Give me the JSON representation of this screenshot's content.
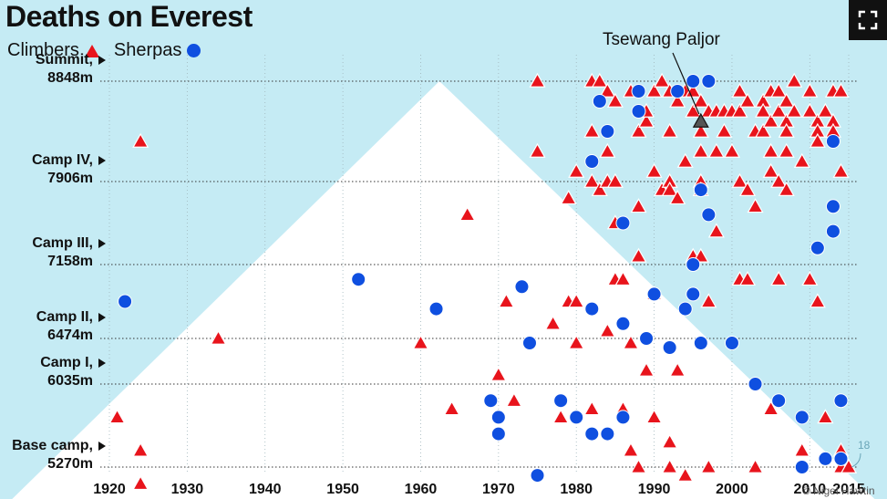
{
  "title": "Deaths on Everest",
  "legend": {
    "climbers": "Climbers",
    "sherpas": "Sherpas"
  },
  "annotation": "Tsewang Paljor",
  "corner_number": "18",
  "credit": "© Nigel Hawtin",
  "colors": {
    "sky": "#c5ebf4",
    "mountain": "#ffffff",
    "climber": "#e8141c",
    "sherpa": "#0f4fe0",
    "text": "#111111"
  },
  "icons": {
    "expand": "expand-icon"
  },
  "chart_data": {
    "type": "scatter",
    "title": "Deaths on Everest",
    "xlim": [
      1918,
      2017
    ],
    "xticks": [
      1920,
      1930,
      1940,
      1950,
      1960,
      1970,
      1980,
      1990,
      2000,
      2010,
      2015
    ],
    "y_scale": "camp-based",
    "ylevels": [
      {
        "name": "Base camp",
        "altitude": "5270m",
        "level": 0
      },
      {
        "name": "Camp I",
        "altitude": "6035m",
        "level": 1
      },
      {
        "name": "Camp II",
        "altitude": "6474m",
        "level": 2
      },
      {
        "name": "Camp III",
        "altitude": "7158m",
        "level": 3
      },
      {
        "name": "Camp IV",
        "altitude": "7906m",
        "level": 4
      },
      {
        "name": "Summit",
        "altitude": "8848m",
        "level": 5
      }
    ],
    "grid": "dotted horizontal at camps",
    "legend_position": "top-left",
    "series": [
      {
        "name": "Climbers",
        "marker": "triangle",
        "points": [
          [
            1921,
            0.6
          ],
          [
            1924,
            -0.2
          ],
          [
            1924,
            0.2
          ],
          [
            1924,
            4.4
          ],
          [
            1934,
            2.0
          ],
          [
            1960,
            1.9
          ],
          [
            1964,
            0.7
          ],
          [
            1966,
            3.6
          ],
          [
            1970,
            1.2
          ],
          [
            1971,
            2.5
          ],
          [
            1972,
            0.8
          ],
          [
            1975,
            5.0
          ],
          [
            1975,
            4.3
          ],
          [
            1977,
            2.2
          ],
          [
            1978,
            0.6
          ],
          [
            1979,
            3.8
          ],
          [
            1979,
            2.5
          ],
          [
            1980,
            4.1
          ],
          [
            1980,
            2.5
          ],
          [
            1980,
            1.9
          ],
          [
            1982,
            5.0
          ],
          [
            1982,
            4.5
          ],
          [
            1982,
            4.0
          ],
          [
            1982,
            0.7
          ],
          [
            1983,
            5.0
          ],
          [
            1983,
            3.9
          ],
          [
            1984,
            4.9
          ],
          [
            1984,
            4.3
          ],
          [
            1984,
            4.0
          ],
          [
            1984,
            2.1
          ],
          [
            1985,
            4.8
          ],
          [
            1985,
            3.5
          ],
          [
            1985,
            2.8
          ],
          [
            1985,
            4.0
          ],
          [
            1986,
            2.8
          ],
          [
            1986,
            0.7
          ],
          [
            1987,
            4.9
          ],
          [
            1987,
            1.9
          ],
          [
            1987,
            0.2
          ],
          [
            1988,
            4.5
          ],
          [
            1988,
            3.1
          ],
          [
            1988,
            0.0
          ],
          [
            1988,
            3.7
          ],
          [
            1989,
            4.6
          ],
          [
            1989,
            4.7
          ],
          [
            1989,
            1.3
          ],
          [
            1990,
            4.9
          ],
          [
            1990,
            4.1
          ],
          [
            1990,
            2.6
          ],
          [
            1990,
            0.6
          ],
          [
            1991,
            5.0
          ],
          [
            1991,
            3.9
          ],
          [
            1992,
            4.9
          ],
          [
            1992,
            4.5
          ],
          [
            1992,
            4.0
          ],
          [
            1992,
            3.9
          ],
          [
            1992,
            0.3
          ],
          [
            1992,
            0.0
          ],
          [
            1993,
            4.8
          ],
          [
            1993,
            3.8
          ],
          [
            1993,
            1.3
          ],
          [
            1994,
            4.9
          ],
          [
            1994,
            4.2
          ],
          [
            1994,
            -0.1
          ],
          [
            1995,
            4.9
          ],
          [
            1995,
            4.7
          ],
          [
            1995,
            3.1
          ],
          [
            1996,
            4.8
          ],
          [
            1996,
            4.6
          ],
          [
            1996,
            4.5
          ],
          [
            1996,
            4.3
          ],
          [
            1996,
            4.0
          ],
          [
            1996,
            3.9
          ],
          [
            1996,
            3.1
          ],
          [
            1997,
            4.7
          ],
          [
            1997,
            2.5
          ],
          [
            1997,
            0.0
          ],
          [
            1998,
            4.7
          ],
          [
            1998,
            4.3
          ],
          [
            1998,
            3.4
          ],
          [
            1999,
            4.7
          ],
          [
            1999,
            4.5
          ],
          [
            2000,
            4.7
          ],
          [
            2000,
            4.3
          ],
          [
            2001,
            4.9
          ],
          [
            2001,
            4.7
          ],
          [
            2001,
            4.0
          ],
          [
            2001,
            2.8
          ],
          [
            2002,
            4.8
          ],
          [
            2002,
            3.9
          ],
          [
            2002,
            2.8
          ],
          [
            2003,
            4.5
          ],
          [
            2003,
            3.7
          ],
          [
            2003,
            0.0
          ],
          [
            2004,
            4.8
          ],
          [
            2004,
            4.7
          ],
          [
            2004,
            4.5
          ],
          [
            2005,
            4.9
          ],
          [
            2005,
            4.6
          ],
          [
            2005,
            4.3
          ],
          [
            2005,
            4.1
          ],
          [
            2005,
            0.7
          ],
          [
            2006,
            4.9
          ],
          [
            2006,
            4.7
          ],
          [
            2006,
            4.0
          ],
          [
            2006,
            2.8
          ],
          [
            2007,
            4.8
          ],
          [
            2007,
            4.6
          ],
          [
            2007,
            4.5
          ],
          [
            2007,
            4.3
          ],
          [
            2007,
            3.9
          ],
          [
            2008,
            5.0
          ],
          [
            2008,
            4.7
          ],
          [
            2009,
            4.2
          ],
          [
            2009,
            0.2
          ],
          [
            2010,
            4.9
          ],
          [
            2010,
            4.7
          ],
          [
            2010,
            2.8
          ],
          [
            2011,
            4.6
          ],
          [
            2011,
            4.5
          ],
          [
            2011,
            4.4
          ],
          [
            2011,
            2.5
          ],
          [
            2012,
            4.7
          ],
          [
            2012,
            0.6
          ],
          [
            2013,
            4.9
          ],
          [
            2013,
            4.6
          ],
          [
            2013,
            4.5
          ],
          [
            2014,
            4.9
          ],
          [
            2014,
            4.1
          ],
          [
            2014,
            0.2
          ],
          [
            2014,
            0.0
          ],
          [
            2015,
            0.0
          ],
          [
            2015,
            0.0
          ]
        ]
      },
      {
        "name": "Sherpas",
        "marker": "circle",
        "points": [
          [
            1922,
            2.5
          ],
          [
            1952,
            2.8
          ],
          [
            1962,
            2.4
          ],
          [
            1969,
            0.8
          ],
          [
            1970,
            0.6
          ],
          [
            1970,
            0.4
          ],
          [
            1973,
            2.7
          ],
          [
            1974,
            1.9
          ],
          [
            1975,
            -0.1
          ],
          [
            1978,
            0.8
          ],
          [
            1980,
            0.6
          ],
          [
            1982,
            4.2
          ],
          [
            1982,
            0.4
          ],
          [
            1982,
            2.4
          ],
          [
            1983,
            4.8
          ],
          [
            1984,
            4.5
          ],
          [
            1984,
            0.4
          ],
          [
            1986,
            3.5
          ],
          [
            1986,
            2.2
          ],
          [
            1986,
            0.6
          ],
          [
            1988,
            4.9
          ],
          [
            1988,
            4.7
          ],
          [
            1989,
            2.0
          ],
          [
            1990,
            2.6
          ],
          [
            1992,
            1.8
          ],
          [
            1993,
            4.9
          ],
          [
            1994,
            2.4
          ],
          [
            1995,
            5.0
          ],
          [
            1995,
            3.0
          ],
          [
            1995,
            2.6
          ],
          [
            1996,
            3.9
          ],
          [
            1996,
            1.9
          ],
          [
            1997,
            5.0
          ],
          [
            1997,
            3.6
          ],
          [
            2000,
            1.9
          ],
          [
            2003,
            1.0
          ],
          [
            2006,
            0.8
          ],
          [
            2009,
            0.6
          ],
          [
            2009,
            0.0
          ],
          [
            2011,
            3.2
          ],
          [
            2012,
            0.1
          ],
          [
            2013,
            3.4
          ],
          [
            2013,
            3.7
          ],
          [
            2013,
            4.4
          ],
          [
            2014,
            0.8
          ],
          [
            2014,
            0.1
          ],
          [
            2014,
            0.1
          ]
        ]
      },
      {
        "name": "Tsewang Paljor",
        "marker": "triangle",
        "points": [
          [
            1996,
            4.6
          ]
        ]
      }
    ]
  }
}
